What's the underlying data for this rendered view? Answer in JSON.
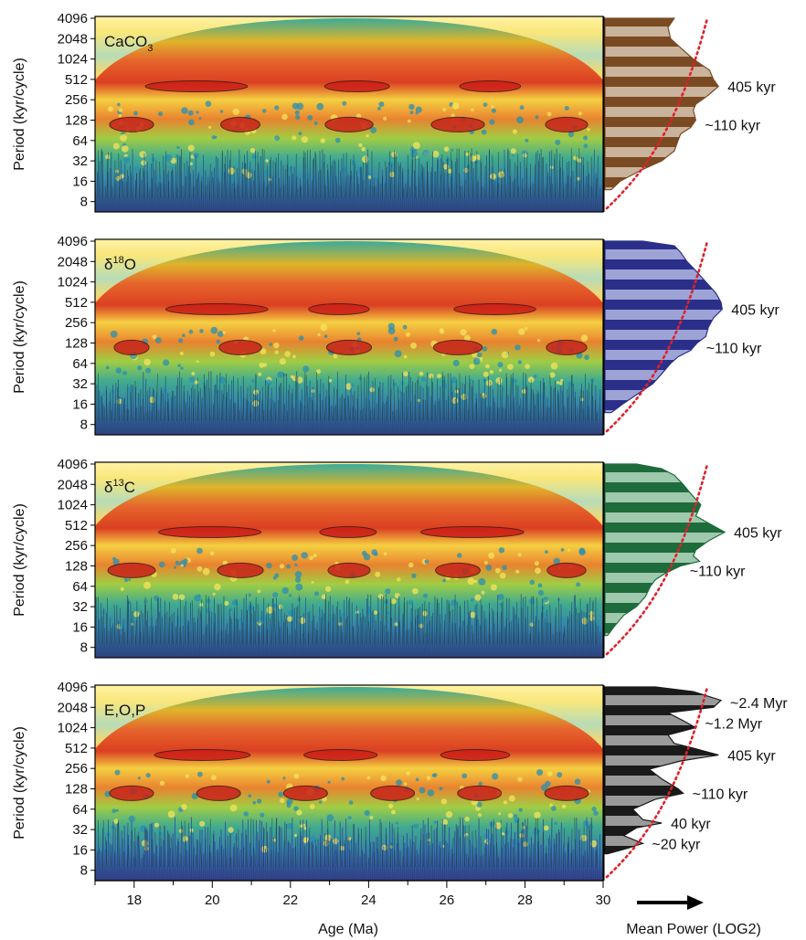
{
  "chart_data": {
    "type": "heatmap",
    "xlabel": "Age (Ma)",
    "xlim": [
      17,
      30
    ],
    "x_ticks": [
      "18",
      "20",
      "22",
      "24",
      "26",
      "28",
      "30"
    ],
    "ylabel": "Period (kyr/cycle)",
    "y_scale": "log2",
    "y_ticks": [
      "4096",
      "2048",
      "1024",
      "512",
      "256",
      "128",
      "64",
      "32",
      "16",
      "8"
    ],
    "side_xlabel": "Mean Power (LOG2)",
    "panels": [
      {
        "label_main": "CaCO",
        "label_sub": "3",
        "label_sup": "",
        "side_color": "#7a4a22",
        "side_fill": "#c9b39c",
        "power_profile": [
          [
            4096,
            0.55
          ],
          [
            3000,
            0.5
          ],
          [
            2048,
            0.52
          ],
          [
            1500,
            0.6
          ],
          [
            1024,
            0.7
          ],
          [
            700,
            0.83
          ],
          [
            512,
            0.86
          ],
          [
            405,
            0.9
          ],
          [
            300,
            0.82
          ],
          [
            220,
            0.72
          ],
          [
            180,
            0.7
          ],
          [
            128,
            0.72
          ],
          [
            100,
            0.68
          ],
          [
            80,
            0.6
          ],
          [
            64,
            0.58
          ],
          [
            45,
            0.55
          ],
          [
            32,
            0.45
          ],
          [
            24,
            0.3
          ],
          [
            16,
            0.12
          ],
          [
            12,
            0.05
          ]
        ],
        "annotations": [
          {
            "text": "405 kyr",
            "period": 405
          },
          {
            "text": "~110 kyr",
            "period": 110
          }
        ]
      },
      {
        "label_main": "δ",
        "label_sub": "",
        "label_sup": "18",
        "label_after": "O",
        "side_color": "#2b2f8a",
        "side_fill": "#9ea3d6",
        "power_profile": [
          [
            4096,
            0.3
          ],
          [
            3500,
            0.55
          ],
          [
            2800,
            0.6
          ],
          [
            2048,
            0.65
          ],
          [
            1500,
            0.72
          ],
          [
            1024,
            0.8
          ],
          [
            700,
            0.88
          ],
          [
            512,
            0.92
          ],
          [
            405,
            0.93
          ],
          [
            300,
            0.86
          ],
          [
            220,
            0.82
          ],
          [
            160,
            0.8
          ],
          [
            128,
            0.73
          ],
          [
            100,
            0.68
          ],
          [
            80,
            0.58
          ],
          [
            64,
            0.52
          ],
          [
            45,
            0.45
          ],
          [
            32,
            0.38
          ],
          [
            24,
            0.28
          ],
          [
            16,
            0.14
          ],
          [
            12,
            0.05
          ]
        ],
        "annotations": [
          {
            "text": "405 kyr",
            "period": 405
          },
          {
            "text": "~110 kyr",
            "period": 110
          }
        ]
      },
      {
        "label_main": "δ",
        "label_sub": "",
        "label_sup": "13",
        "label_after": "C",
        "side_color": "#1e6b3c",
        "side_fill": "#9fc9ad",
        "power_profile": [
          [
            4096,
            0.25
          ],
          [
            3500,
            0.45
          ],
          [
            2800,
            0.55
          ],
          [
            2048,
            0.62
          ],
          [
            1500,
            0.68
          ],
          [
            1024,
            0.76
          ],
          [
            700,
            0.72
          ],
          [
            512,
            0.85
          ],
          [
            405,
            0.95
          ],
          [
            300,
            0.82
          ],
          [
            220,
            0.72
          ],
          [
            180,
            0.7
          ],
          [
            150,
            0.75
          ],
          [
            128,
            0.6
          ],
          [
            100,
            0.48
          ],
          [
            80,
            0.4
          ],
          [
            64,
            0.36
          ],
          [
            45,
            0.32
          ],
          [
            32,
            0.25
          ],
          [
            24,
            0.15
          ],
          [
            16,
            0.07
          ],
          [
            12,
            0.02
          ]
        ],
        "annotations": [
          {
            "text": "405 kyr",
            "period": 405
          },
          {
            "text": "~110 kyr",
            "period": 110
          }
        ]
      },
      {
        "label_main": "E,O,P",
        "label_sub": "",
        "label_sup": "",
        "side_color": "#1a1a1a",
        "side_fill": "#9a9a9a",
        "power_profile": [
          [
            4096,
            0.4
          ],
          [
            3500,
            0.7
          ],
          [
            2600,
            0.92
          ],
          [
            2048,
            0.86
          ],
          [
            1700,
            0.5
          ],
          [
            1300,
            0.62
          ],
          [
            1024,
            0.72
          ],
          [
            800,
            0.5
          ],
          [
            600,
            0.55
          ],
          [
            512,
            0.7
          ],
          [
            405,
            0.9
          ],
          [
            330,
            0.6
          ],
          [
            250,
            0.35
          ],
          [
            180,
            0.45
          ],
          [
            128,
            0.58
          ],
          [
            110,
            0.62
          ],
          [
            90,
            0.4
          ],
          [
            64,
            0.22
          ],
          [
            45,
            0.3
          ],
          [
            40,
            0.45
          ],
          [
            34,
            0.25
          ],
          [
            26,
            0.15
          ],
          [
            20,
            0.3
          ],
          [
            17,
            0.18
          ],
          [
            14,
            0.02
          ]
        ],
        "annotations": [
          {
            "text": "~2.4 Myr",
            "period": 2400
          },
          {
            "text": "~1.2 Myr",
            "period": 1200
          },
          {
            "text": "405 kyr",
            "period": 405
          },
          {
            "text": "~110 kyr",
            "period": 110
          },
          {
            "text": "40 kyr",
            "period": 40
          },
          {
            "text": "~20 kyr",
            "period": 20
          }
        ]
      }
    ]
  }
}
